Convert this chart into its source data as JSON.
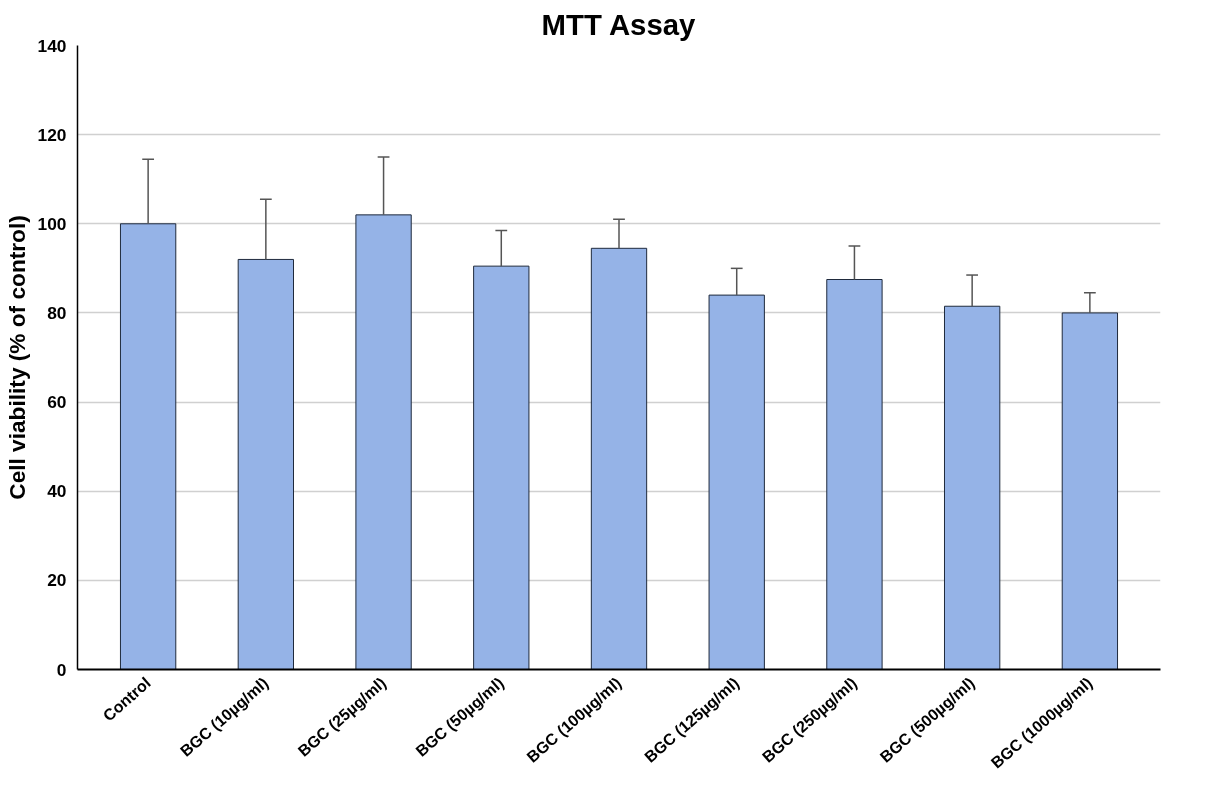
{
  "chart_data": {
    "type": "bar",
    "title": "MTT Assay",
    "ylabel": "Cell viability (% of control)",
    "categories": [
      "Control",
      "BGC (10µg/ml)",
      "BGC (25µg/ml)",
      "BGC (50µg/ml)",
      "BGC (100µg/ml)",
      "BGC (125µg/ml)",
      "BGC (250µg/ml)",
      "BGC (500µg/ml)",
      "BGC (1000µg/ml)"
    ],
    "values": [
      100,
      92,
      102,
      90.5,
      94.5,
      84,
      87.5,
      81.5,
      80
    ],
    "errors": [
      [
        100,
        114.5
      ],
      [
        92,
        105.5
      ],
      [
        102,
        115
      ],
      [
        90.5,
        98.5
      ],
      [
        94.5,
        101
      ],
      [
        84,
        90
      ],
      [
        87.5,
        95
      ],
      [
        81.5,
        88.5
      ],
      [
        80,
        84.5
      ]
    ],
    "color": "#95b3e7",
    "ylim": [
      0,
      140
    ],
    "yticks": [
      0,
      20,
      40,
      60,
      80,
      100,
      120,
      140
    ],
    "grid": "y"
  }
}
